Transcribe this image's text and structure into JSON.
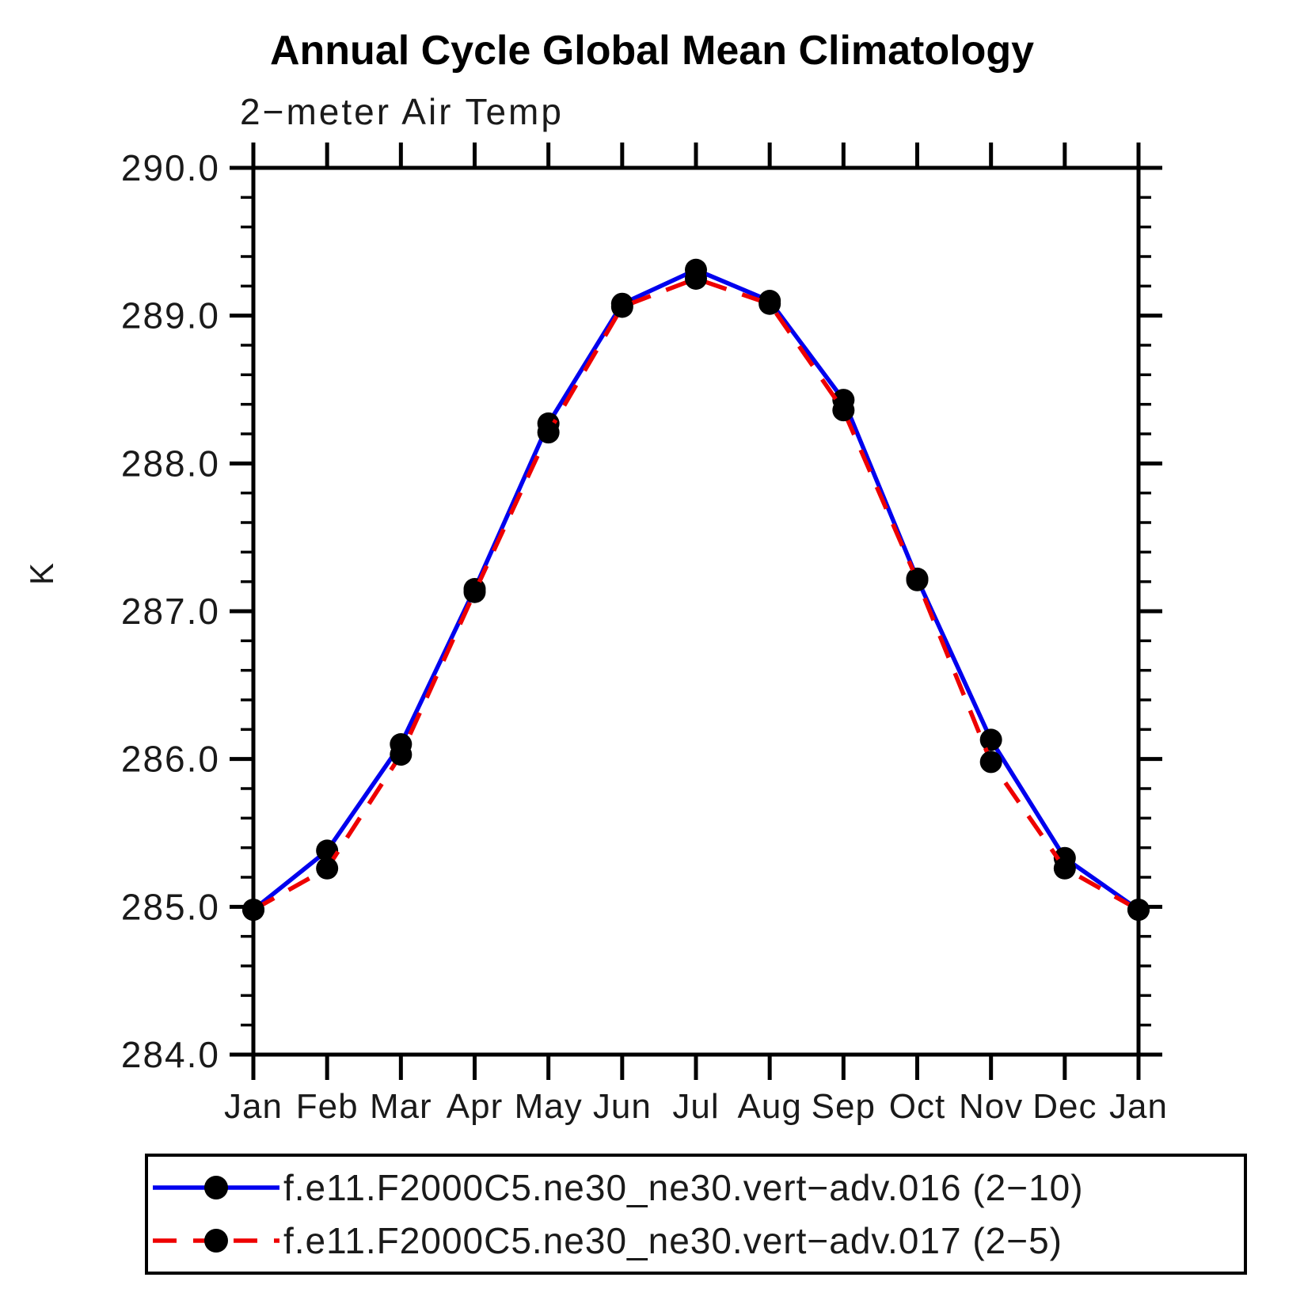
{
  "header": {
    "title": "Annual Cycle Global Mean Climatology",
    "subtitle": "2−meter Air Temp"
  },
  "chart_data": {
    "type": "line",
    "title": "Annual Cycle Global Mean Climatology",
    "subtitle": "2−meter Air Temp",
    "xlabel": "",
    "ylabel": "K",
    "ylim": [
      284.0,
      290.0
    ],
    "y_major_step": 1.0,
    "y_minor_step": 0.2,
    "y_tick_labels": [
      "284.0",
      "285.0",
      "286.0",
      "287.0",
      "288.0",
      "289.0",
      "290.0"
    ],
    "categories": [
      "Jan",
      "Feb",
      "Mar",
      "Apr",
      "May",
      "Jun",
      "Jul",
      "Aug",
      "Sep",
      "Oct",
      "Nov",
      "Dec",
      "Jan"
    ],
    "series": [
      {
        "name": "f.e11.F2000C5.ne30_ne30.vert−adv.016 (2−10)",
        "color": "#0000ee",
        "line_style": "solid",
        "marker": "filled-circle",
        "marker_color": "#000000",
        "values": [
          284.98,
          285.38,
          286.1,
          287.15,
          288.27,
          289.08,
          289.31,
          289.1,
          288.43,
          287.22,
          286.13,
          285.33,
          284.98
        ]
      },
      {
        "name": "f.e11.F2000C5.ne30_ne30.vert−adv.017 (2−5)",
        "color": "#ee0000",
        "line_style": "dashed",
        "marker": "filled-circle",
        "marker_color": "#000000",
        "values": [
          284.98,
          285.26,
          286.03,
          287.13,
          288.21,
          289.06,
          289.25,
          289.08,
          288.36,
          287.21,
          285.98,
          285.26,
          284.98
        ]
      }
    ],
    "grid": false,
    "legend_position": "bottom",
    "frame": "box-outward-ticks"
  }
}
